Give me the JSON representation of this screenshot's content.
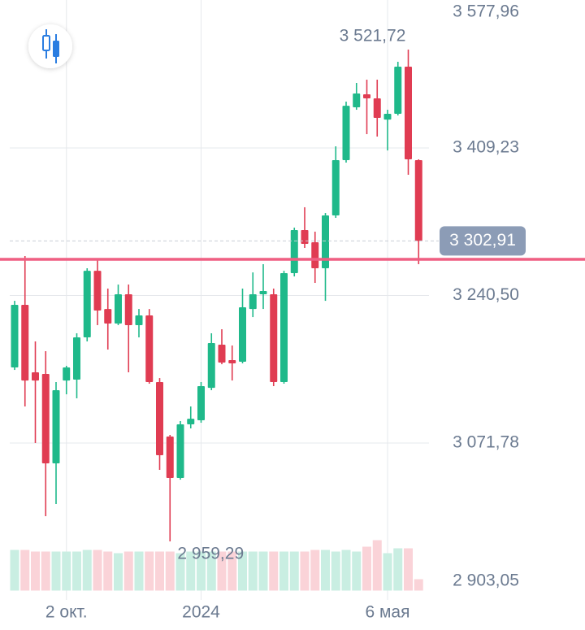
{
  "chart_data": {
    "type": "candlestick",
    "categories": [
      null,
      null,
      null,
      null,
      null,
      "2 окт.",
      null,
      null,
      null,
      null,
      null,
      null,
      null,
      null,
      null,
      null,
      null,
      null,
      "2024",
      null,
      null,
      null,
      null,
      null,
      null,
      null,
      null,
      null,
      null,
      null,
      null,
      null,
      null,
      null,
      null,
      null,
      "6 мая",
      null,
      null,
      null
    ],
    "open": [
      3158.2,
      3229.8,
      3152.6,
      3150.8,
      3048.5,
      3143.3,
      3144.3,
      3192.6,
      3268.8,
      3225.1,
      3208.4,
      3241.9,
      3206.6,
      3217.7,
      3141.5,
      3079.2,
      3031.8,
      3093.2,
      3097.8,
      3134.9,
      3184.3,
      3166.6,
      3164.7,
      3225.1,
      3241.9,
      3241.9,
      3141.5,
      3266.1,
      3315.3,
      3301.4,
      3271.6,
      3332.1,
      3395.3,
      3455.7,
      3470.6,
      3465.9,
      3441.7,
      3448.3,
      3502.2,
      3395.3
    ],
    "high": [
      3234.4,
      3285.6,
      3188.0,
      3176.8,
      3141.5,
      3160.1,
      3197.3,
      3271.6,
      3282.8,
      3248.4,
      3253.0,
      3253.0,
      3225.1,
      3225.1,
      3146.1,
      3081.1,
      3096.9,
      3113.6,
      3141.5,
      3197.3,
      3201.9,
      3183.3,
      3248.4,
      3266.9,
      3276.3,
      3248.4,
      3268.8,
      3318.1,
      3341.4,
      3313.5,
      3334.8,
      3411.1,
      3462.2,
      3483.6,
      3487.3,
      3487.3,
      3452.9,
      3507.8,
      3521.72,
      3396.2
    ],
    "low": [
      3155.4,
      3113.6,
      3071.8,
      2988.1,
      3002.0,
      3127.5,
      3122.9,
      3188.0,
      3206.6,
      3178.7,
      3206.6,
      3152.6,
      3192.6,
      3139.6,
      3041.1,
      2959.29,
      3029.9,
      3088.5,
      3095.0,
      3132.2,
      3161.9,
      3143.3,
      3162.9,
      3215.8,
      3225.1,
      3136.8,
      3139.6,
      3262.3,
      3294.9,
      3254.9,
      3234.4,
      3329.3,
      3392.5,
      3452.9,
      3425.0,
      3422.2,
      3406.4,
      3446.4,
      3378.5,
      3276.3
    ],
    "close": [
      3229.8,
      3143.3,
      3143.3,
      3048.5,
      3132.2,
      3158.2,
      3192.6,
      3268.8,
      3223.3,
      3208.4,
      3241.9,
      3206.6,
      3217.7,
      3141.5,
      3057.8,
      3031.8,
      3093.2,
      3099.6,
      3136.8,
      3186.1,
      3163.8,
      3162.9,
      3227.0,
      3241.9,
      3245.6,
      3141.5,
      3266.1,
      3315.3,
      3299.5,
      3271.6,
      3332.1,
      3395.3,
      3457.5,
      3471.5,
      3465.9,
      3443.6,
      3448.3,
      3502.2,
      3396.2,
      3302.91
    ],
    "volume": [
      50,
      50,
      48,
      48,
      48,
      48,
      48,
      50,
      50,
      48,
      46,
      48,
      48,
      48,
      48,
      48,
      46,
      48,
      48,
      48,
      48,
      48,
      48,
      48,
      48,
      48,
      48,
      48,
      48,
      50,
      50,
      48,
      50,
      48,
      54,
      62,
      46,
      52,
      52,
      14
    ],
    "up_color": "#1fb98a",
    "down_color": "#e03c52",
    "up_volume_color": "#c9eee2",
    "down_volume_color": "#fad3d8",
    "ylim": [
      2903.05,
      3577.96
    ],
    "yticks": [
      {
        "value": 3577.96,
        "label": "3 577,96"
      },
      {
        "value": 3409.23,
        "label": "3 409,23"
      },
      {
        "value": 3240.5,
        "label": "3 240,50"
      },
      {
        "value": 3071.78,
        "label": "3 071,78"
      },
      {
        "value": 2903.05,
        "label": "2 903,05"
      }
    ],
    "grid": true,
    "last_price": {
      "value": 3302.91,
      "label": "3 302,91"
    },
    "annotations": [
      {
        "value": 3521.72,
        "label": "3 521,72"
      },
      {
        "value": 2959.29,
        "label": "2 959,29"
      }
    ],
    "hline": {
      "value": 3281.9,
      "color": "#ef5f82"
    }
  }
}
